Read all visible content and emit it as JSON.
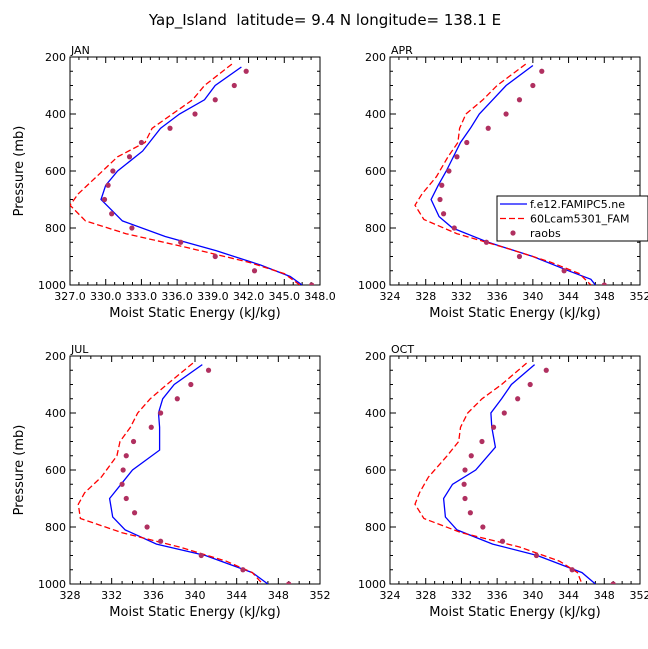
{
  "title": "Yap_Island  latitude= 9.4 N longitude= 138.1 E",
  "colors": {
    "model_a": "#0000ff",
    "model_b": "#ff0000",
    "obs": "#b03060"
  },
  "legend": {
    "entries": [
      {
        "label": "f.e12.FAMIPC5.ne",
        "style": "solid",
        "color": "#0000ff"
      },
      {
        "label": "60Lcam5301_FAM",
        "style": "dashed",
        "color": "#ff0000"
      },
      {
        "label": "raobs",
        "style": "dots",
        "color": "#b03060"
      }
    ]
  },
  "chart_data": [
    {
      "type": "line",
      "panel_label": "JAN",
      "xlabel": "Moist Static Energy (kJ/kg)",
      "ylabel": "Pressure (mb)",
      "xlim": [
        327,
        348
      ],
      "ylim": [
        200,
        1000
      ],
      "y_inverted": true,
      "x_ticks": [
        327,
        330,
        333,
        336,
        339,
        342,
        345,
        348
      ],
      "x_tick_labels": [
        "327.0",
        "330.0",
        "333.0",
        "336.0",
        "339.0",
        "342.0",
        "345.0",
        "348.0"
      ],
      "y_ticks": [
        200,
        400,
        600,
        800,
        1000
      ],
      "series": [
        {
          "name": "f.e12.FAMIPC5.ne",
          "style": "solid",
          "x": [
            341.4,
            339.2,
            338.3,
            336.2,
            334.6,
            333.1,
            331.0,
            330.0,
            329.6,
            331.4,
            335.0,
            339.3,
            343.0,
            345.5,
            346.5
          ],
          "y": [
            235,
            300,
            350,
            400,
            450,
            530,
            600,
            650,
            700,
            775,
            830,
            880,
            930,
            970,
            1000
          ]
        },
        {
          "name": "60Lcam5301_FAM",
          "style": "dashed",
          "x": [
            340.6,
            338.3,
            337.3,
            335.6,
            333.9,
            333.3,
            331.0,
            329.1,
            327.7,
            327.0,
            328.3,
            331.7,
            337.0,
            342.0,
            345.0,
            346.3
          ],
          "y": [
            225,
            300,
            350,
            400,
            450,
            500,
            550,
            625,
            680,
            720,
            775,
            820,
            870,
            920,
            960,
            1000
          ]
        },
        {
          "name": "raobs",
          "style": "dots",
          "x": [
            341.8,
            340.8,
            339.2,
            337.5,
            335.4,
            333.0,
            332.0,
            330.6,
            330.2,
            329.9,
            330.5,
            332.2,
            336.3,
            339.2,
            342.5,
            347.3
          ],
          "y": [
            250,
            300,
            350,
            400,
            450,
            500,
            550,
            600,
            650,
            700,
            750,
            800,
            850,
            900,
            950,
            1000
          ]
        }
      ]
    },
    {
      "type": "line",
      "panel_label": "APR",
      "xlabel": "Moist Static Energy (kJ/kg)",
      "ylabel": "",
      "xlim": [
        324,
        352
      ],
      "ylim": [
        200,
        1000
      ],
      "y_inverted": true,
      "x_ticks": [
        324,
        328,
        332,
        336,
        340,
        344,
        348,
        352
      ],
      "x_tick_labels": [
        "324",
        "328",
        "332",
        "336",
        "340",
        "344",
        "348",
        "352"
      ],
      "y_ticks": [
        200,
        400,
        600,
        800,
        1000
      ],
      "series": [
        {
          "name": "f.e12.FAMIPC5.ne",
          "style": "solid",
          "x": [
            340.0,
            337.0,
            335.5,
            334.0,
            333.0,
            331.9,
            330.3,
            329.4,
            328.6,
            329.5,
            331.0,
            335.0,
            340.0,
            344.0,
            346.5,
            347.0
          ],
          "y": [
            230,
            300,
            350,
            400,
            450,
            500,
            600,
            650,
            700,
            760,
            800,
            850,
            900,
            950,
            980,
            1000
          ]
        },
        {
          "name": "60Lcam5301_FAM",
          "style": "dashed",
          "x": [
            339.2,
            336.0,
            334.4,
            332.5,
            331.8,
            331.6,
            330.5,
            329.2,
            327.6,
            326.8,
            327.8,
            331.5,
            337.0,
            342.0,
            345.2,
            346.5
          ],
          "y": [
            225,
            300,
            350,
            400,
            450,
            500,
            550,
            620,
            680,
            720,
            770,
            820,
            870,
            920,
            960,
            1000
          ]
        },
        {
          "name": "raobs",
          "style": "dots",
          "x": [
            341.0,
            340.0,
            338.5,
            337.0,
            335.0,
            332.6,
            331.5,
            330.6,
            329.8,
            329.6,
            330.0,
            331.2,
            334.8,
            338.5,
            343.5,
            348.0
          ],
          "y": [
            250,
            300,
            350,
            400,
            450,
            500,
            550,
            600,
            650,
            700,
            750,
            800,
            850,
            900,
            950,
            1000
          ]
        }
      ]
    },
    {
      "type": "line",
      "panel_label": "JUL",
      "xlabel": "Moist Static Energy (kJ/kg)",
      "ylabel": "Pressure (mb)",
      "xlim": [
        328,
        352
      ],
      "ylim": [
        200,
        1000
      ],
      "y_inverted": true,
      "x_ticks": [
        328,
        332,
        336,
        340,
        344,
        348,
        352
      ],
      "x_tick_labels": [
        "328",
        "332",
        "336",
        "340",
        "344",
        "348",
        "352"
      ],
      "y_ticks": [
        200,
        400,
        600,
        800,
        1000
      ],
      "series": [
        {
          "name": "f.e12.FAMIPC5.ne",
          "style": "solid",
          "x": [
            340.7,
            338.0,
            336.9,
            336.5,
            336.6,
            336.6,
            334.0,
            332.9,
            331.8,
            332.1,
            333.3,
            336.3,
            341.0,
            345.5,
            347.0
          ],
          "y": [
            230,
            300,
            350,
            400,
            450,
            530,
            600,
            650,
            700,
            765,
            810,
            860,
            900,
            960,
            1000
          ]
        },
        {
          "name": "60Lcam5301_FAM",
          "style": "dashed",
          "x": [
            339.8,
            337.3,
            335.7,
            334.5,
            333.8,
            332.8,
            332.5,
            331.0,
            329.4,
            328.8,
            329.0,
            333.0,
            338.5,
            343.0,
            345.5,
            346.5
          ],
          "y": [
            225,
            300,
            350,
            400,
            450,
            500,
            550,
            625,
            680,
            720,
            770,
            820,
            870,
            920,
            960,
            1000
          ]
        },
        {
          "name": "raobs",
          "style": "dots",
          "x": [
            341.3,
            339.6,
            338.3,
            336.7,
            335.8,
            334.1,
            333.4,
            333.1,
            333.0,
            333.4,
            334.2,
            335.4,
            336.7,
            340.6,
            344.6,
            349.0
          ],
          "y": [
            250,
            300,
            350,
            400,
            450,
            500,
            550,
            600,
            650,
            700,
            750,
            800,
            850,
            900,
            950,
            1000
          ]
        }
      ]
    },
    {
      "type": "line",
      "panel_label": "OCT",
      "xlabel": "Moist Static Energy (kJ/kg)",
      "ylabel": "",
      "xlim": [
        324,
        352
      ],
      "ylim": [
        200,
        1000
      ],
      "y_inverted": true,
      "x_ticks": [
        324,
        328,
        332,
        336,
        340,
        344,
        348,
        352
      ],
      "x_tick_labels": [
        "324",
        "328",
        "332",
        "336",
        "340",
        "344",
        "348",
        "352"
      ],
      "y_ticks": [
        200,
        400,
        600,
        800,
        1000
      ],
      "series": [
        {
          "name": "f.e12.FAMIPC5.ne",
          "style": "solid",
          "x": [
            340.2,
            337.6,
            336.5,
            335.3,
            335.4,
            335.8,
            333.6,
            331.0,
            330.0,
            330.2,
            331.5,
            335.5,
            340.5,
            345.5,
            347.0
          ],
          "y": [
            230,
            300,
            350,
            400,
            450,
            520,
            600,
            650,
            700,
            765,
            810,
            860,
            900,
            960,
            1000
          ]
        },
        {
          "name": "60Lcam5301_FAM",
          "style": "dashed",
          "x": [
            339.3,
            336.5,
            334.3,
            332.7,
            331.9,
            331.7,
            330.4,
            328.3,
            327.3,
            326.8,
            327.8,
            332.0,
            338.5,
            343.0,
            345.0,
            345.5
          ],
          "y": [
            225,
            300,
            350,
            400,
            450,
            500,
            550,
            625,
            680,
            720,
            770,
            820,
            870,
            920,
            960,
            1000
          ]
        },
        {
          "name": "raobs",
          "style": "dots",
          "x": [
            341.5,
            339.7,
            338.3,
            336.8,
            335.6,
            334.3,
            333.1,
            332.4,
            332.3,
            332.4,
            333.0,
            334.4,
            336.6,
            340.4,
            344.4,
            349.0
          ],
          "y": [
            250,
            300,
            350,
            400,
            450,
            500,
            550,
            600,
            650,
            700,
            750,
            800,
            850,
            900,
            950,
            1000
          ]
        }
      ]
    }
  ]
}
